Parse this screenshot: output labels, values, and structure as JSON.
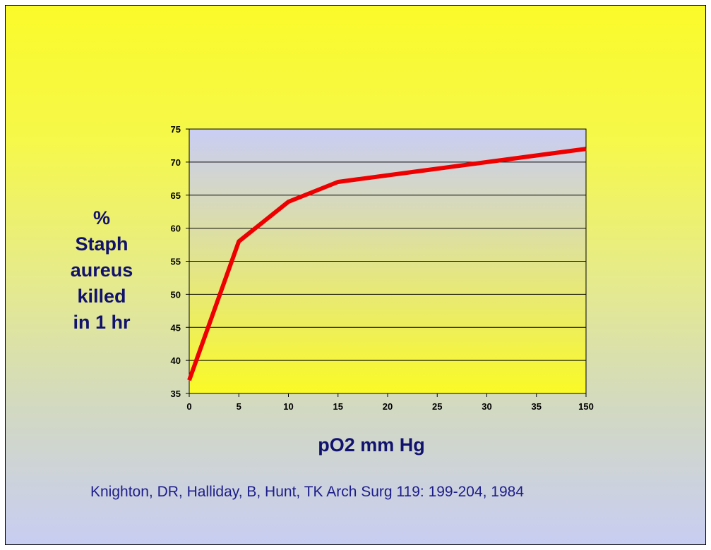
{
  "chart_data": {
    "type": "line",
    "title": "",
    "xlabel": "pO2 mm Hg",
    "ylabel_lines": [
      "%",
      "Staph",
      "aureus",
      "killed",
      "in 1 hr"
    ],
    "categories": [
      "0",
      "5",
      "10",
      "15",
      "20",
      "25",
      "30",
      "35",
      "150"
    ],
    "series": [
      {
        "color": "#ee0000",
        "values": [
          37,
          58,
          64,
          67,
          68,
          69,
          70,
          71,
          72
        ]
      }
    ],
    "ylim": [
      35,
      75
    ],
    "yticks": [
      35,
      40,
      45,
      50,
      55,
      60,
      65,
      70,
      75
    ],
    "grid": true,
    "plot_gradient": [
      "#c9cdf5",
      "#fafa26"
    ]
  },
  "citation": "Knighton, DR, Halliday, B, Hunt, TK Arch Surg 119: 199-204, 1984"
}
